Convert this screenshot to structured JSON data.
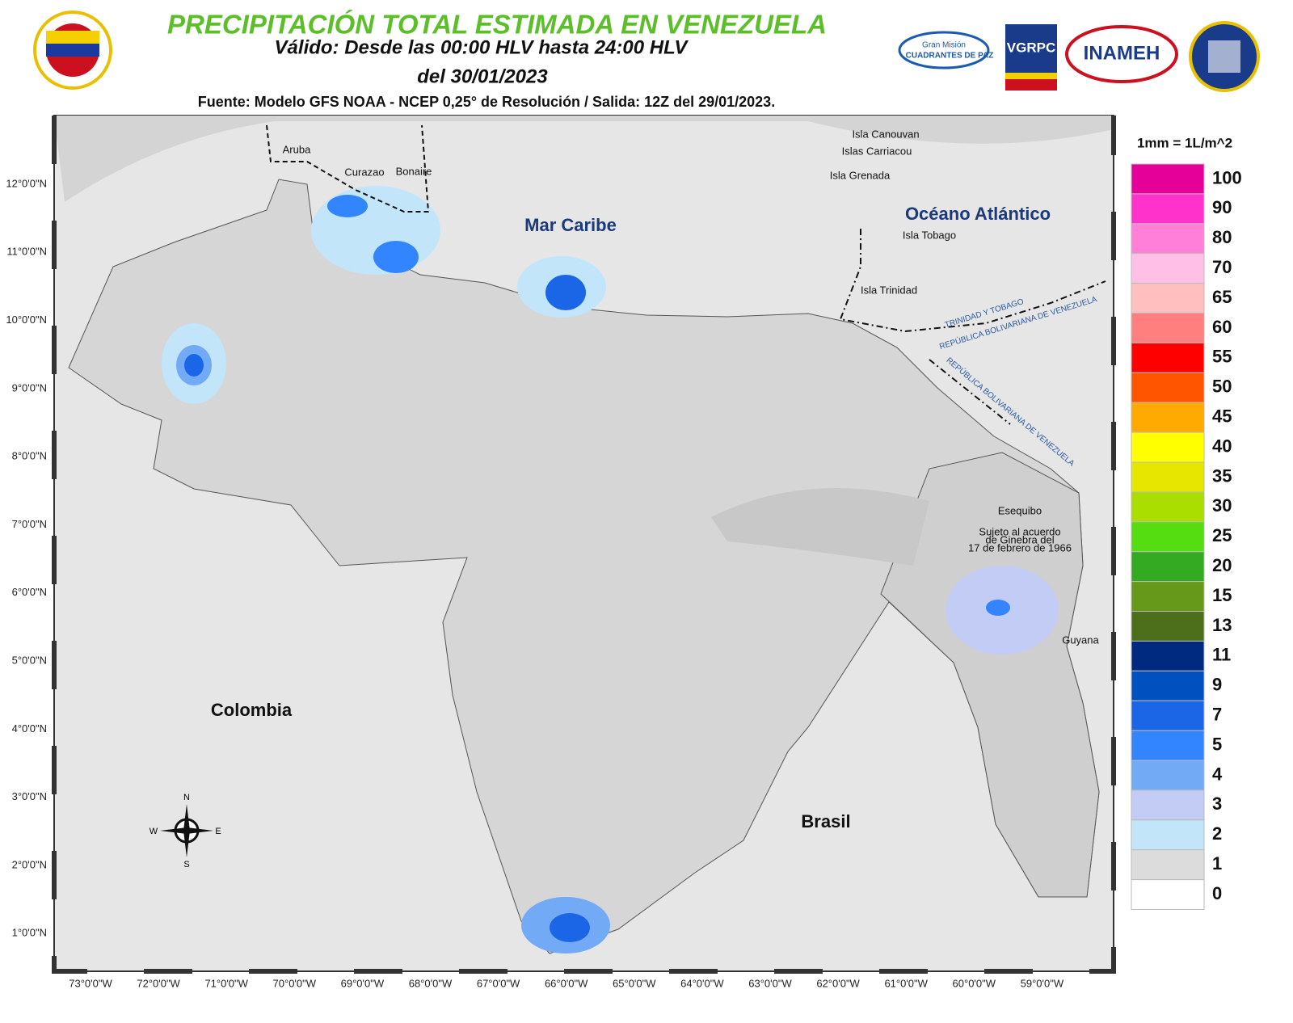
{
  "header": {
    "title": "PRECIPITACIÓN TOTAL ESTIMADA EN VENEZUELA",
    "validity": "Válido: Desde las 00:00 HLV hasta 24:00 HLV",
    "date": "del 30/01/2023",
    "source": "Fuente: Modelo GFS NOAA - NCEP 0,25° de Resolución / Salida: 12Z del 29/01/2023."
  },
  "logos": {
    "cuadrantes_top": "Gran Misión",
    "cuadrantes": "CUADRANTES DE PAZ",
    "vgrpc": "VGRPC",
    "inameh": "INAMEH"
  },
  "map": {
    "lat_labels": [
      "12°0'0\"N",
      "11°0'0\"N",
      "10°0'0\"N",
      "9°0'0\"N",
      "8°0'0\"N",
      "7°0'0\"N",
      "6°0'0\"N",
      "5°0'0\"N",
      "4°0'0\"N",
      "3°0'0\"N",
      "2°0'0\"N",
      "1°0'0\"N"
    ],
    "lon_labels": [
      "73°0'0\"W",
      "72°0'0\"W",
      "71°0'0\"W",
      "70°0'0\"W",
      "69°0'0\"W",
      "68°0'0\"W",
      "67°0'0\"W",
      "66°0'0\"W",
      "65°0'0\"W",
      "64°0'0\"W",
      "63°0'0\"W",
      "62°0'0\"W",
      "61°0'0\"W",
      "60°0'0\"W",
      "59°0'0\"W"
    ],
    "places": {
      "aruba": "Aruba",
      "curazao": "Curazao",
      "bonaire": "Bonaire",
      "canouvan": "Isla Canouvan",
      "carriacou": "Islas Carriacou",
      "grenada": "Isla Grenada",
      "tobago": "Isla Tobago",
      "trinidad": "Isla Trinidad",
      "mar_caribe": "Mar Caribe",
      "oceano": "Océano Atlántico",
      "colombia": "Colombia",
      "brasil": "Brasil",
      "guyana": "Guyana",
      "esequibo": "Esequibo",
      "esequibo_note": [
        "Sujeto al acuerdo",
        "de Ginebra del",
        "17 de febrero de 1966"
      ],
      "border_tt": "TRINIDAD Y TOBAGO",
      "border_rbv1": "REPÚBLICA BOLIVARIANA DE VENEZUELA",
      "border_rbv2": "REPÚBLICA BOLIVARIANA DE VENEZUELA"
    },
    "compass": {
      "n": "N",
      "s": "S",
      "e": "E",
      "w": "W"
    }
  },
  "legend": {
    "unit": "1mm = 1L/m^2",
    "classes": [
      {
        "value": 100,
        "color": "#e6009a"
      },
      {
        "value": 90,
        "color": "#ff33cc"
      },
      {
        "value": 80,
        "color": "#ff7fd9"
      },
      {
        "value": 70,
        "color": "#ffbfe6"
      },
      {
        "value": 65,
        "color": "#ffbfbf"
      },
      {
        "value": 60,
        "color": "#ff7f7f"
      },
      {
        "value": 55,
        "color": "#ff0000"
      },
      {
        "value": 50,
        "color": "#ff5500"
      },
      {
        "value": 45,
        "color": "#ffaa00"
      },
      {
        "value": 40,
        "color": "#ffff00"
      },
      {
        "value": 35,
        "color": "#e6e600"
      },
      {
        "value": 30,
        "color": "#aadd00"
      },
      {
        "value": 25,
        "color": "#55dd11"
      },
      {
        "value": 20,
        "color": "#33aa22"
      },
      {
        "value": 15,
        "color": "#66991a"
      },
      {
        "value": 13,
        "color": "#4d6e1a"
      },
      {
        "value": 11,
        "color": "#002a7f"
      },
      {
        "value": 9,
        "color": "#0050c0"
      },
      {
        "value": 7,
        "color": "#1a66e6"
      },
      {
        "value": 5,
        "color": "#3385ff"
      },
      {
        "value": 4,
        "color": "#73aaf5"
      },
      {
        "value": 3,
        "color": "#c2ccf5"
      },
      {
        "value": 2,
        "color": "#c2e5fa"
      },
      {
        "value": 1,
        "color": "#dcdcdc"
      },
      {
        "value": 0,
        "color": "#ffffff"
      }
    ]
  }
}
